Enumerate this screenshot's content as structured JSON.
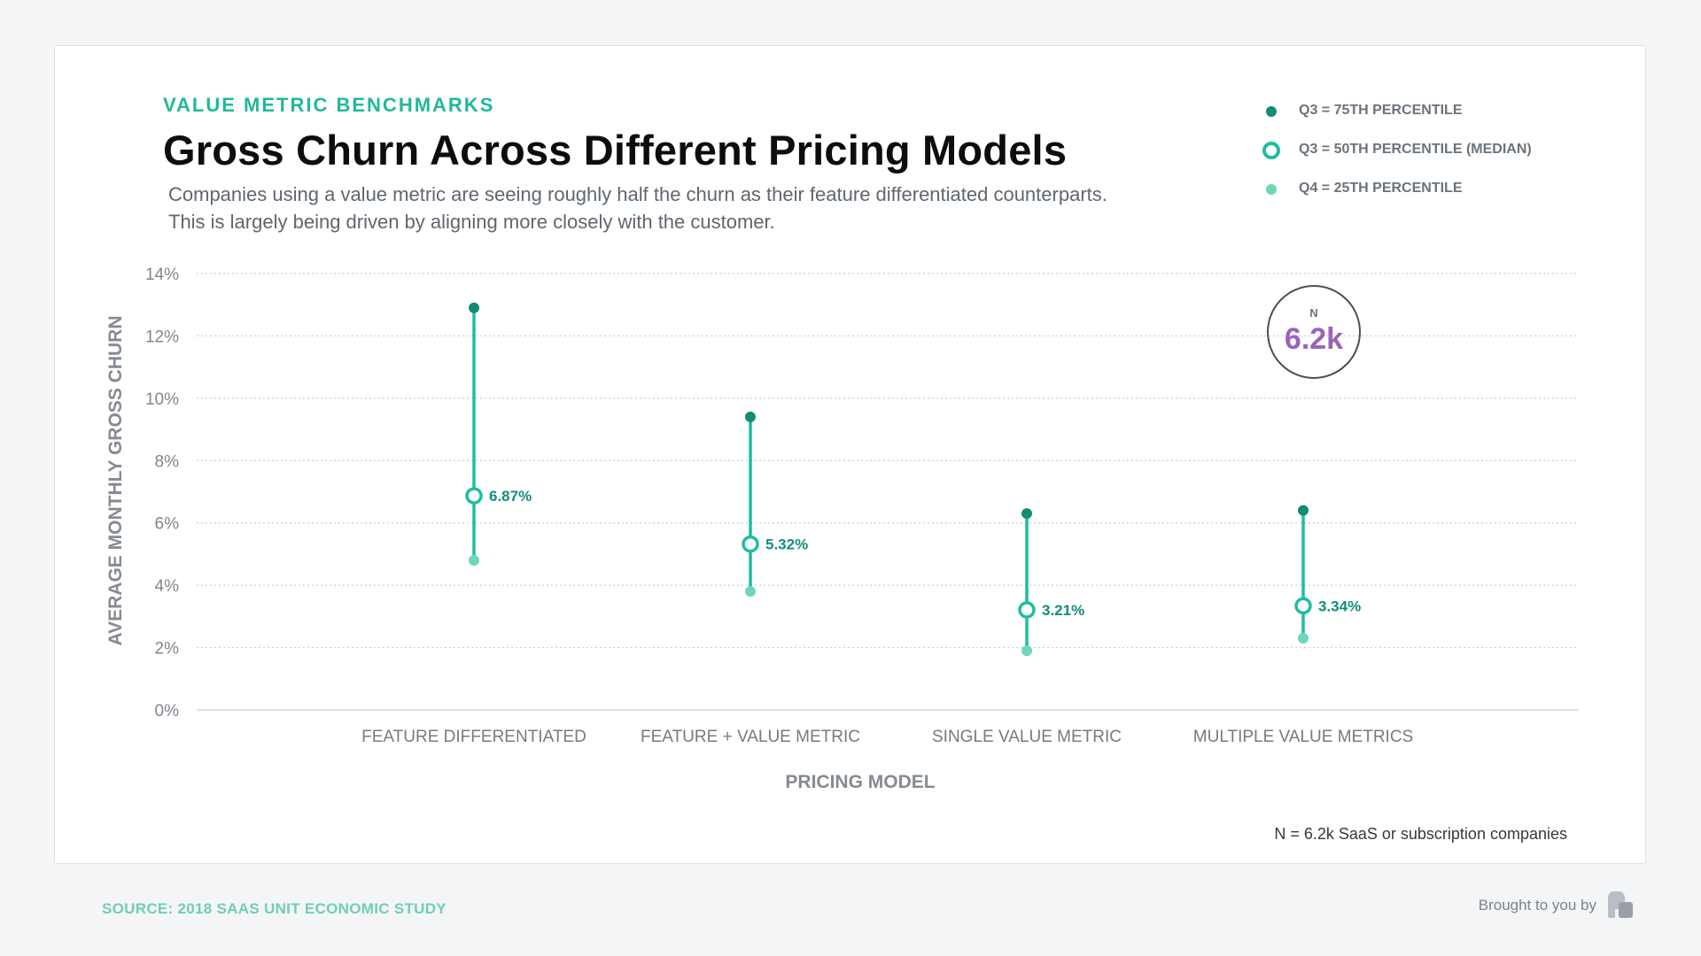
{
  "header": {
    "eyebrow": "VALUE METRIC BENCHMARKS",
    "title": "Gross Churn Across Different Pricing Models",
    "subtitle": "Companies using a value metric are seeing roughly half the churn as their feature differentiated counterparts. This is largely being driven by aligning more closely with the customer."
  },
  "legend": [
    {
      "label": "Q3 = 75TH PERCENTILE",
      "marker": "filled-dark"
    },
    {
      "label": "Q3 = 50TH PERCENTILE (MEDIAN)",
      "marker": "ring"
    },
    {
      "label": "Q4 = 25TH PERCENTILE",
      "marker": "filled-light"
    }
  ],
  "badge": {
    "letter": "N",
    "value": "6.2k"
  },
  "footnote": "N = 6.2k SaaS or subscription companies",
  "footer": {
    "source": "SOURCE: 2018 SAAS UNIT ECONOMIC STUDY",
    "brought_by": "Brought to you by",
    "logo_icon": "profitwell-logo-icon"
  },
  "colors": {
    "dark": "#138c74",
    "mid": "#1fbda0",
    "light": "#6fd6b8",
    "badge_value": "#9b63b8"
  },
  "chart_data": {
    "type": "range-dot",
    "xlabel": "PRICING MODEL",
    "ylabel": "AVERAGE MONTHLY GROSS CHURN",
    "ylim": [
      0,
      14
    ],
    "yticks": [
      0,
      2,
      4,
      6,
      8,
      10,
      12,
      14
    ],
    "ytick_suffix": "%",
    "grid": true,
    "legend_position": "top-right",
    "categories": [
      "FEATURE DIFFERENTIATED",
      "FEATURE + VALUE METRIC",
      "SINGLE VALUE METRIC",
      "MULTIPLE VALUE METRICS"
    ],
    "series": [
      {
        "name": "Q3 = 75TH PERCENTILE",
        "values": [
          12.9,
          9.4,
          6.3,
          6.4
        ]
      },
      {
        "name": "Q3 = 50TH PERCENTILE (MEDIAN)",
        "values": [
          6.87,
          5.32,
          3.21,
          3.34
        ]
      },
      {
        "name": "Q4 = 25TH PERCENTILE",
        "values": [
          4.8,
          3.8,
          1.9,
          2.3
        ]
      }
    ],
    "data_labels": [
      "6.87%",
      "5.32%",
      "3.21%",
      "3.34%"
    ]
  }
}
